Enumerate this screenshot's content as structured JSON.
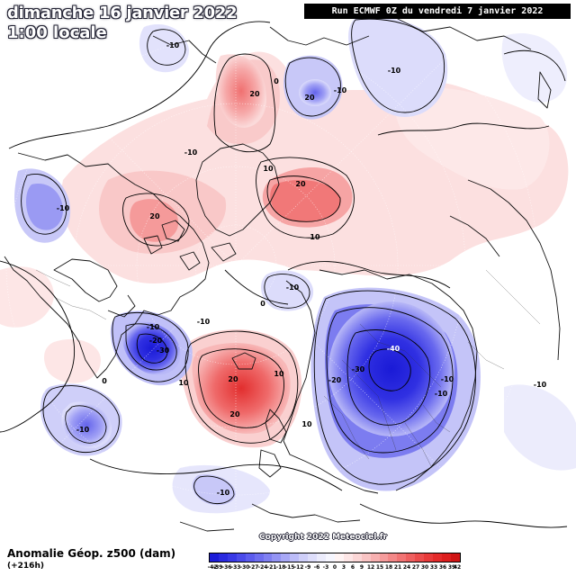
{
  "header": {
    "date_title": "dimanche 16 janvier 2022",
    "time_title": "1:00 locale",
    "run_info": "Run ECMWF 0Z du vendredi 7 janvier 2022"
  },
  "footer": {
    "copyright": "Copyright 2022 Meteociel.fr",
    "legend_title": "Anomalie Géop. z500 (dam)",
    "legend_subtitle": "(+216h)"
  },
  "colorbar": {
    "ticks": [
      "-42",
      "-39",
      "-36",
      "-33",
      "-30",
      "-27",
      "-24",
      "-21",
      "-18",
      "-15",
      "-12",
      "-9",
      "-6",
      "-3",
      "0",
      "3",
      "6",
      "9",
      "12",
      "15",
      "18",
      "21",
      "24",
      "27",
      "30",
      "33",
      "36",
      "39",
      "42"
    ],
    "colors": [
      "#1c1cd8",
      "#2a2ae0",
      "#3838e6",
      "#4a4aea",
      "#5c5cee",
      "#6e6ef0",
      "#8080f2",
      "#9494f4",
      "#a8a8f6",
      "#bcbcf8",
      "#cfcff9",
      "#dedefb",
      "#ececfc",
      "#f6f6fe",
      "#fff4f4",
      "#fde6e6",
      "#fbd6d6",
      "#f9c4c4",
      "#f7b0b0",
      "#f59c9c",
      "#f38888",
      "#f17474",
      "#ee6060",
      "#eb4c4c",
      "#e83a3a",
      "#e42a2a",
      "#dd1e1e",
      "#d01414"
    ]
  },
  "contour_labels": [
    {
      "text": "-10",
      "white": false
    },
    {
      "text": "20",
      "white": false
    },
    {
      "text": "-10",
      "white": false
    },
    {
      "text": "20",
      "white": false
    },
    {
      "text": "-10",
      "white": false
    },
    {
      "text": "0",
      "white": false
    },
    {
      "text": "10",
      "white": false
    },
    {
      "text": "20",
      "white": false
    },
    {
      "text": "10",
      "white": false
    },
    {
      "text": "-10",
      "white": false
    },
    {
      "text": "20",
      "white": false
    },
    {
      "text": "-10",
      "white": false
    },
    {
      "text": "-10",
      "white": false
    },
    {
      "text": "-20",
      "white": false
    },
    {
      "text": "-30",
      "white": false
    },
    {
      "text": "10",
      "white": false
    },
    {
      "text": "20",
      "white": false
    },
    {
      "text": "20",
      "white": false
    },
    {
      "text": "10",
      "white": false
    },
    {
      "text": "-10",
      "white": false
    },
    {
      "text": "-40",
      "white": true
    },
    {
      "text": "-30",
      "white": false
    },
    {
      "text": "-20",
      "white": false
    },
    {
      "text": "-10",
      "white": false
    },
    {
      "text": "-10",
      "white": false
    },
    {
      "text": "-10",
      "white": false
    },
    {
      "text": "0",
      "white": false
    },
    {
      "text": "0",
      "white": false
    },
    {
      "text": "-10",
      "white": false
    },
    {
      "text": "10",
      "white": false
    },
    {
      "text": "-10",
      "white": false
    },
    {
      "text": "-10",
      "white": false
    }
  ]
}
